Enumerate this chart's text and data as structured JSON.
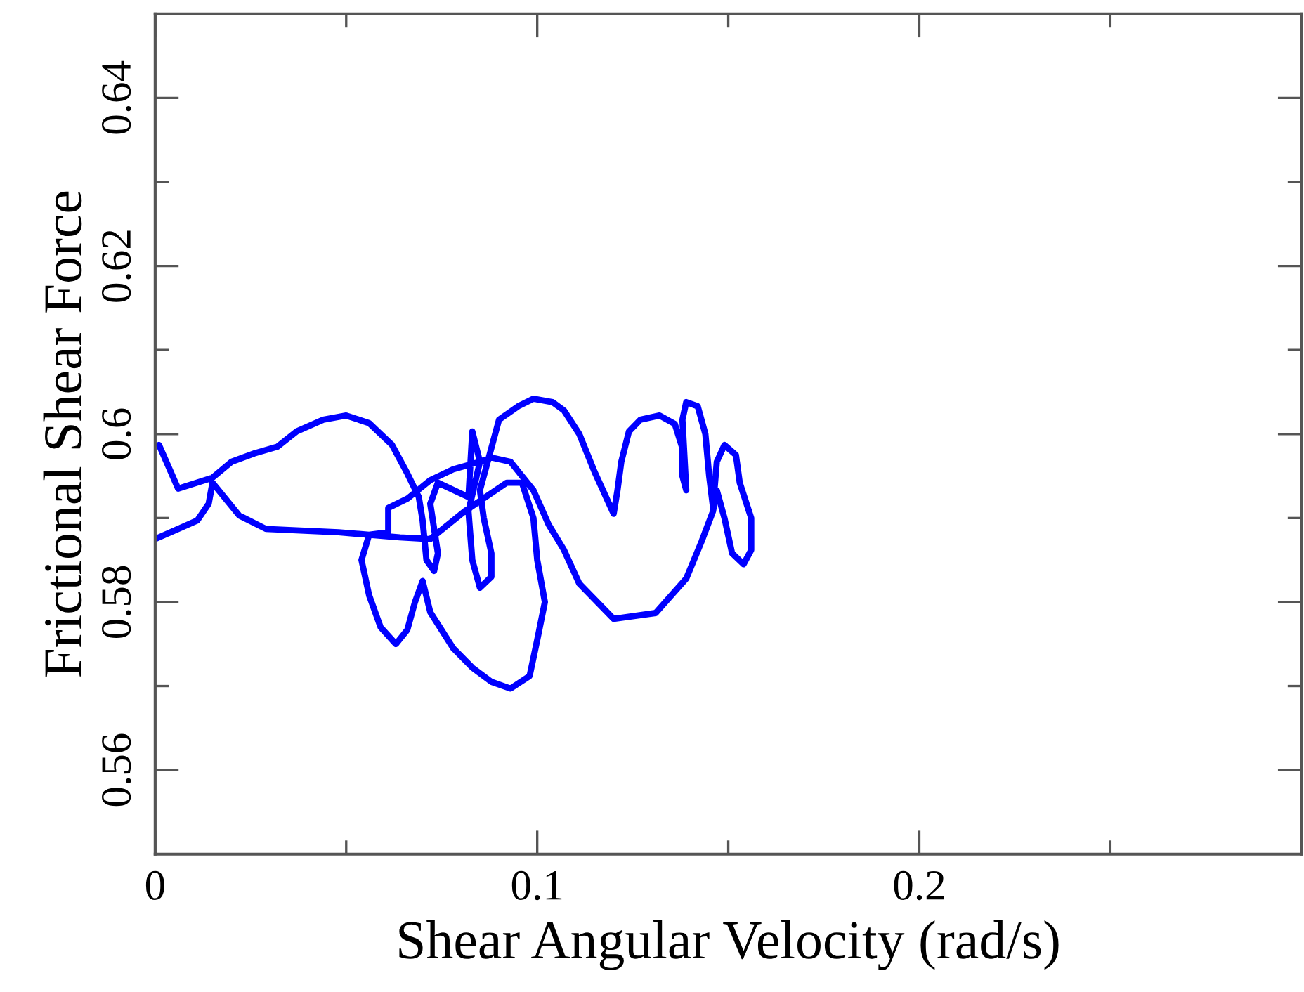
{
  "chart_data": {
    "type": "line",
    "xlabel": "Shear Angular Velocity (rad/s)",
    "ylabel": "Frictional Shear Force",
    "xlim": [
      0,
      0.3
    ],
    "ylim": [
      0.55,
      0.65
    ],
    "xticks": [
      0,
      {
        "value": 0.05,
        "label": null
      },
      0.1,
      {
        "value": 0.15,
        "label": null
      },
      0.2,
      {
        "value": 0.25,
        "label": null
      }
    ],
    "yticks": [
      {
        "value": 0.56,
        "label": "0.56"
      },
      {
        "value": 0.57,
        "label": null
      },
      {
        "value": 0.58,
        "label": "0.58"
      },
      {
        "value": 0.59,
        "label": null
      },
      {
        "value": 0.6,
        "label": "0.6"
      },
      {
        "value": 0.61,
        "label": null
      },
      {
        "value": 0.62,
        "label": "0.62"
      },
      {
        "value": 0.63,
        "label": null
      },
      {
        "value": 0.64,
        "label": "0.64"
      }
    ],
    "grid": false,
    "legend": false,
    "marker": "none",
    "line_style": "solid",
    "series": [
      {
        "color": "#0000ff",
        "x": [
          0.001,
          0.006,
          0.015,
          0.02,
          0.026,
          0.032,
          0.037,
          0.044,
          0.05,
          0.056,
          0.062,
          0.066,
          0.069,
          0.07,
          0.071,
          0.073,
          0.074,
          0.072,
          0.074,
          0.082,
          0.083,
          0.085,
          0.082,
          0.083,
          0.085,
          0.088,
          0.088,
          0.086,
          0.085,
          0.09,
          0.095,
          0.099,
          0.104,
          0.107,
          0.111,
          0.115,
          0.12,
          0.121,
          0.122,
          0.124,
          0.127,
          0.132,
          0.136,
          0.138,
          0.138,
          0.139,
          0.138,
          0.139,
          0.142,
          0.144,
          0.145,
          0.146,
          0.147,
          0.149,
          0.152,
          0.153,
          0.156,
          0.156,
          0.154,
          0.151,
          0.149,
          0.147,
          0.146,
          0.143,
          0.139,
          0.131,
          0.12,
          0.111,
          0.107,
          0.103,
          0.099,
          0.093,
          0.088,
          0.085,
          0.078,
          0.072,
          0.066,
          0.061,
          0.061,
          0.056,
          0.054,
          0.056,
          0.059,
          0.063,
          0.066,
          0.068,
          0.07,
          0.072,
          0.078,
          0.083,
          0.088,
          0.093,
          0.098,
          0.1,
          0.102,
          0.1,
          0.099,
          0.096,
          0.092,
          0.081,
          0.072,
          0.064,
          0.048,
          0.029,
          0.022,
          0.015,
          0.014,
          0.011,
          0.006,
          0.0
        ],
        "values": [
          0.5987,
          0.5935,
          0.5948,
          0.5967,
          0.5977,
          0.5985,
          0.6003,
          0.6017,
          0.6022,
          0.6013,
          0.5987,
          0.5953,
          0.5925,
          0.5897,
          0.585,
          0.5837,
          0.5858,
          0.5917,
          0.5942,
          0.5925,
          0.6003,
          0.5967,
          0.5908,
          0.585,
          0.5817,
          0.583,
          0.5858,
          0.59,
          0.5933,
          0.6017,
          0.6033,
          0.6042,
          0.6038,
          0.6028,
          0.6,
          0.5955,
          0.5905,
          0.5933,
          0.5967,
          0.6003,
          0.6017,
          0.6022,
          0.6012,
          0.5983,
          0.595,
          0.5933,
          0.6017,
          0.6038,
          0.6033,
          0.6,
          0.595,
          0.5913,
          0.5967,
          0.5987,
          0.5975,
          0.5942,
          0.59,
          0.5862,
          0.5845,
          0.5858,
          0.59,
          0.5933,
          0.5908,
          0.5872,
          0.5828,
          0.5787,
          0.578,
          0.5822,
          0.5862,
          0.5892,
          0.5933,
          0.5967,
          0.5972,
          0.5967,
          0.5958,
          0.5945,
          0.5923,
          0.5912,
          0.5883,
          0.588,
          0.585,
          0.5808,
          0.577,
          0.575,
          0.5767,
          0.58,
          0.5825,
          0.5788,
          0.5745,
          0.5722,
          0.5705,
          0.5697,
          0.5712,
          0.5755,
          0.58,
          0.585,
          0.59,
          0.5942,
          0.5942,
          0.5908,
          0.5875,
          0.5877,
          0.5883,
          0.5887,
          0.5903,
          0.5942,
          0.5917,
          0.5897,
          0.5887,
          0.5875
        ]
      }
    ]
  }
}
